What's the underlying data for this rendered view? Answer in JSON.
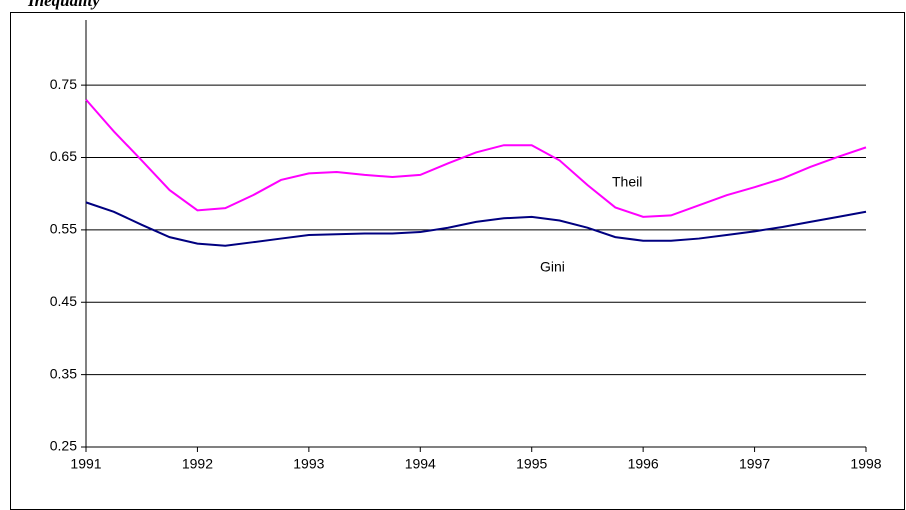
{
  "chart_data": {
    "type": "line",
    "title": "Inequality",
    "x": [
      1991,
      1991.25,
      1991.5,
      1991.75,
      1992,
      1992.25,
      1992.5,
      1992.75,
      1993,
      1993.25,
      1993.5,
      1993.75,
      1994,
      1994.25,
      1994.5,
      1994.75,
      1995,
      1995.25,
      1995.5,
      1995.75,
      1996,
      1996.25,
      1996.5,
      1996.75,
      1997,
      1997.25,
      1997.5,
      1997.75,
      1998
    ],
    "series": [
      {
        "name": "Theil",
        "color": "#ff00ff",
        "values": [
          0.73,
          0.686,
          0.646,
          0.605,
          0.577,
          0.58,
          0.598,
          0.619,
          0.628,
          0.63,
          0.626,
          0.623,
          0.626,
          0.642,
          0.657,
          0.667,
          0.667,
          0.646,
          0.612,
          0.581,
          0.568,
          0.57,
          0.584,
          0.598,
          0.609,
          0.621,
          0.637,
          0.651,
          0.664
        ]
      },
      {
        "name": "Gini",
        "color": "#000080",
        "values": [
          0.588,
          0.575,
          0.557,
          0.54,
          0.531,
          0.528,
          0.533,
          0.538,
          0.543,
          0.544,
          0.545,
          0.545,
          0.547,
          0.553,
          0.561,
          0.566,
          0.568,
          0.563,
          0.553,
          0.54,
          0.535,
          0.535,
          0.538,
          0.543,
          0.548,
          0.554,
          0.561,
          0.568,
          0.575
        ]
      }
    ],
    "xlim": [
      1991,
      1998
    ],
    "xticks": [
      1991,
      1992,
      1993,
      1994,
      1995,
      1996,
      1997,
      1998
    ],
    "ylim": [
      0.25,
      0.84
    ],
    "yticks": [
      0.25,
      0.35,
      0.45,
      0.55,
      0.65,
      0.75
    ],
    "grid": true
  }
}
